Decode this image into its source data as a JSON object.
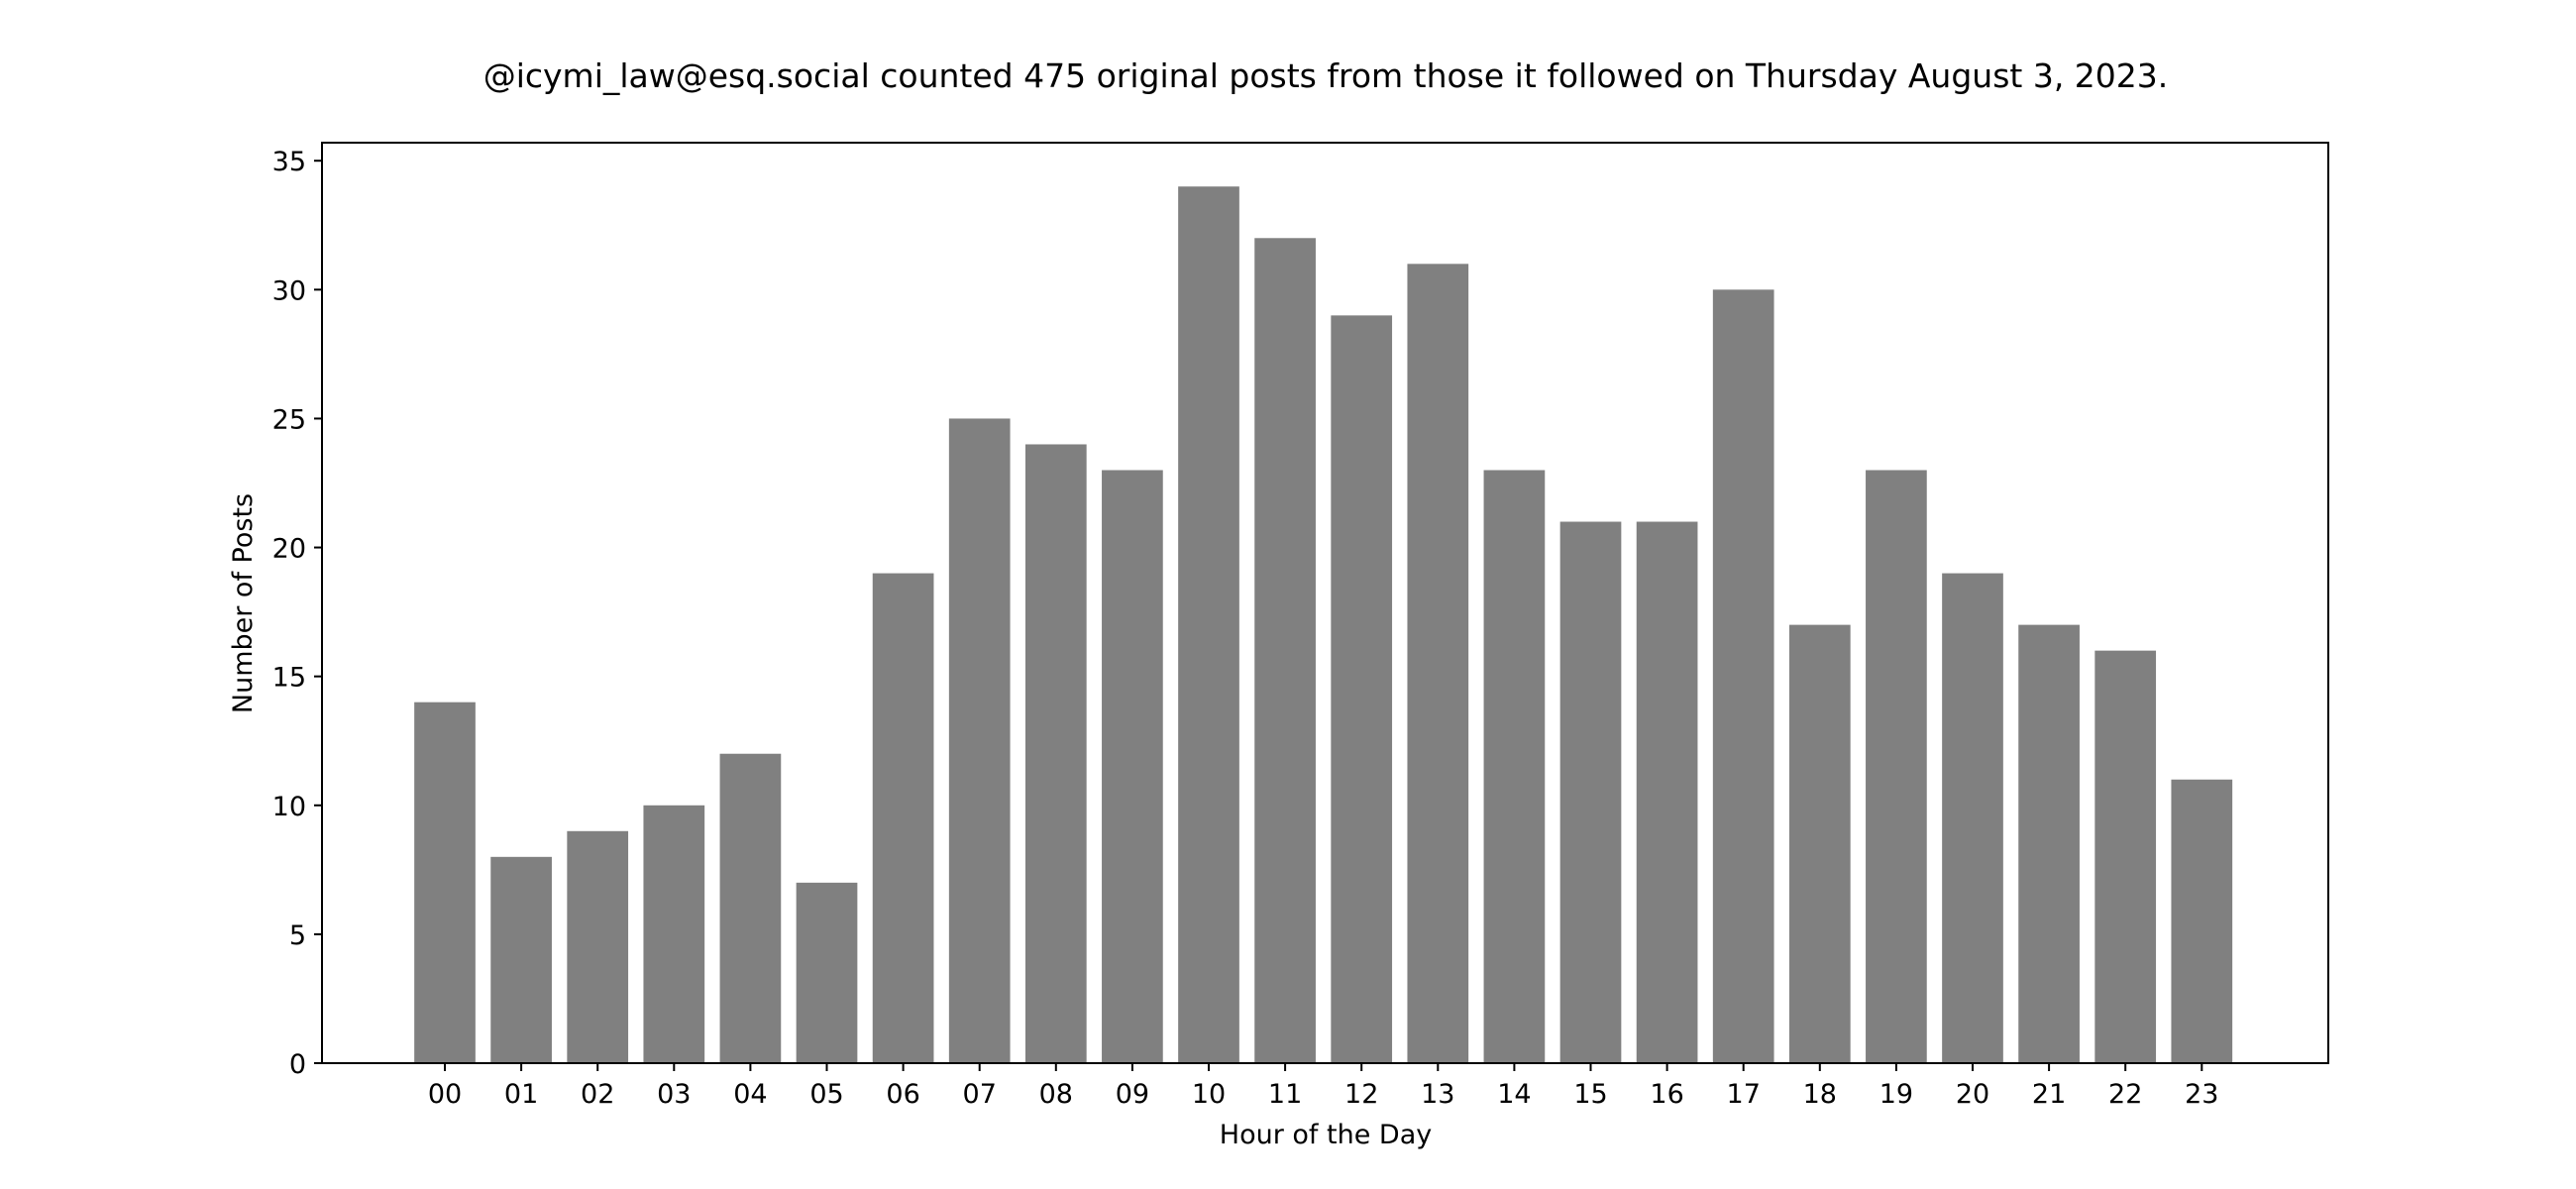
{
  "chart_data": {
    "type": "bar",
    "title": "@icymi_law@esq.social counted 475 original posts from those it followed on Thursday August 3, 2023.",
    "xlabel": "Hour of the Day",
    "ylabel": "Number of Posts",
    "categories": [
      "00",
      "01",
      "02",
      "03",
      "04",
      "05",
      "06",
      "07",
      "08",
      "09",
      "10",
      "11",
      "12",
      "13",
      "14",
      "15",
      "16",
      "17",
      "18",
      "19",
      "20",
      "21",
      "22",
      "23"
    ],
    "values": [
      14,
      8,
      9,
      10,
      12,
      7,
      19,
      25,
      24,
      23,
      34,
      32,
      29,
      31,
      23,
      21,
      21,
      30,
      17,
      23,
      19,
      17,
      16,
      11
    ],
    "ylim": [
      0,
      35.7
    ],
    "yticks": [
      0,
      5,
      10,
      15,
      20,
      25,
      30,
      35
    ],
    "grid": false,
    "bar_color": "#808080",
    "axis_color": "#000000"
  }
}
